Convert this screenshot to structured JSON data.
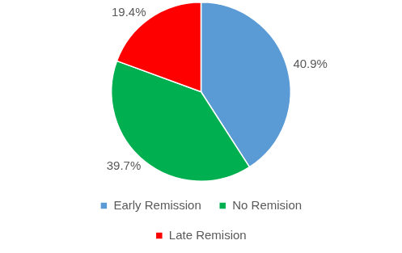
{
  "chart_data": {
    "type": "pie",
    "categories": [
      "Early Remission",
      "No Remision",
      "Late Remision"
    ],
    "values": [
      40.9,
      39.7,
      19.4
    ],
    "value_labels": [
      "40.9%",
      "39.7%",
      "19.4%"
    ],
    "colors": [
      "#5b9bd5",
      "#00b050",
      "#ff0000"
    ],
    "data_labels": true,
    "legend": "bottom"
  }
}
